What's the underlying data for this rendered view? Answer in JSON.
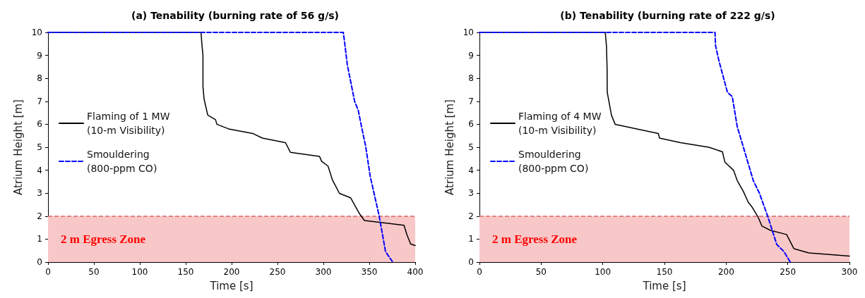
{
  "chart_data": [
    {
      "type": "line",
      "title": "(a) Tenability (burning rate of 56 g/s)",
      "xlabel": "Time [s]",
      "ylabel": "Atrium Height [m]",
      "xlim": [
        0,
        400
      ],
      "xticks": [
        0,
        50,
        100,
        150,
        200,
        250,
        300,
        350,
        400
      ],
      "ylim": [
        0,
        10
      ],
      "yticks": [
        0,
        1,
        2,
        3,
        4,
        5,
        6,
        7,
        8,
        9,
        10
      ],
      "grid": false,
      "legend": "left",
      "marker": "none",
      "series": [
        {
          "name": "Flaming of 1 MW\n(10-m Visibility)",
          "color": "#000000",
          "line_style": "solid",
          "x": [
            0,
            166.7,
            167.5,
            168.8,
            168.8,
            170,
            174,
            182.5,
            183.9,
            196.6,
            223,
            233.5,
            258.7,
            264,
            295.8,
            298,
            305,
            310,
            317.5,
            329.6,
            339.4,
            344.7,
            387.8,
            391,
            395,
            400
          ],
          "values": [
            10,
            10,
            9.55,
            9.0,
            7.64,
            7.1,
            6.4,
            6.2,
            6.0,
            5.8,
            5.6,
            5.4,
            5.2,
            4.78,
            4.6,
            4.39,
            4.18,
            3.56,
            2.99,
            2.8,
            2.1,
            1.81,
            1.6,
            1.19,
            0.79,
            0.72
          ]
        },
        {
          "name": "Smouldering\n(800-ppm CO)",
          "color": "#0000ff",
          "line_style": "dashed",
          "x": [
            0,
            321.7,
            323.5,
            326,
            330,
            334,
            338,
            342,
            346,
            351,
            360.6,
            367.7,
            375
          ],
          "values": [
            10,
            10,
            9.44,
            8.6,
            7.8,
            7.0,
            6.6,
            5.8,
            5.05,
            3.73,
            2.04,
            0.45,
            0.03
          ]
        }
      ],
      "bands": [
        {
          "axis": "y",
          "from": 0,
          "to": 2,
          "label": "2 m Egress Zone",
          "color": "#f8c8c8"
        }
      ],
      "ref_lines": [
        {
          "axis": "y",
          "value": 2,
          "color": "#d96666",
          "line_style": "dashed"
        }
      ]
    },
    {
      "type": "line",
      "title": "(b) Tenability (burning rate of 222 g/s)",
      "xlabel": "Time [s]",
      "ylabel": "Atrium Height [m]",
      "xlim": [
        0,
        300
      ],
      "xticks": [
        0,
        50,
        100,
        150,
        200,
        250,
        300
      ],
      "ylim": [
        0,
        10
      ],
      "yticks": [
        0,
        1,
        2,
        3,
        4,
        5,
        6,
        7,
        8,
        9,
        10
      ],
      "grid": false,
      "legend": "left",
      "marker": "none",
      "series": [
        {
          "name": "Flaming of 4 MW\n(10-m Visibility)",
          "color": "#000000",
          "line_style": "solid",
          "x": [
            0,
            102,
            103,
            103.5,
            103.6,
            107,
            110,
            145,
            146,
            163,
            186,
            197,
            199,
            206,
            209,
            214,
            218,
            221,
            226,
            229,
            236,
            249,
            255,
            267,
            300
          ],
          "values": [
            10,
            10,
            9.4,
            8.4,
            7.4,
            6.4,
            6.0,
            5.6,
            5.4,
            5.2,
            5.0,
            4.8,
            4.35,
            4.0,
            3.55,
            3.07,
            2.6,
            2.4,
            1.95,
            1.57,
            1.38,
            1.2,
            0.58,
            0.4,
            0.26
          ]
        },
        {
          "name": "Smouldering\n(800-ppm CO)",
          "color": "#0000ff",
          "line_style": "dashed",
          "x": [
            0,
            191,
            191.4,
            194,
            201,
            205,
            209,
            214,
            222,
            227,
            234,
            241,
            247,
            252
          ],
          "values": [
            10,
            10,
            9.43,
            8.8,
            7.4,
            7.2,
            5.9,
            5.0,
            3.55,
            3.0,
            1.95,
            0.77,
            0.45,
            0
          ]
        }
      ],
      "bands": [
        {
          "axis": "y",
          "from": 0,
          "to": 2,
          "label": "2 m Egress Zone",
          "color": "#f8c8c8"
        }
      ],
      "ref_lines": [
        {
          "axis": "y",
          "value": 2,
          "color": "#d96666",
          "line_style": "dashed"
        }
      ]
    }
  ]
}
